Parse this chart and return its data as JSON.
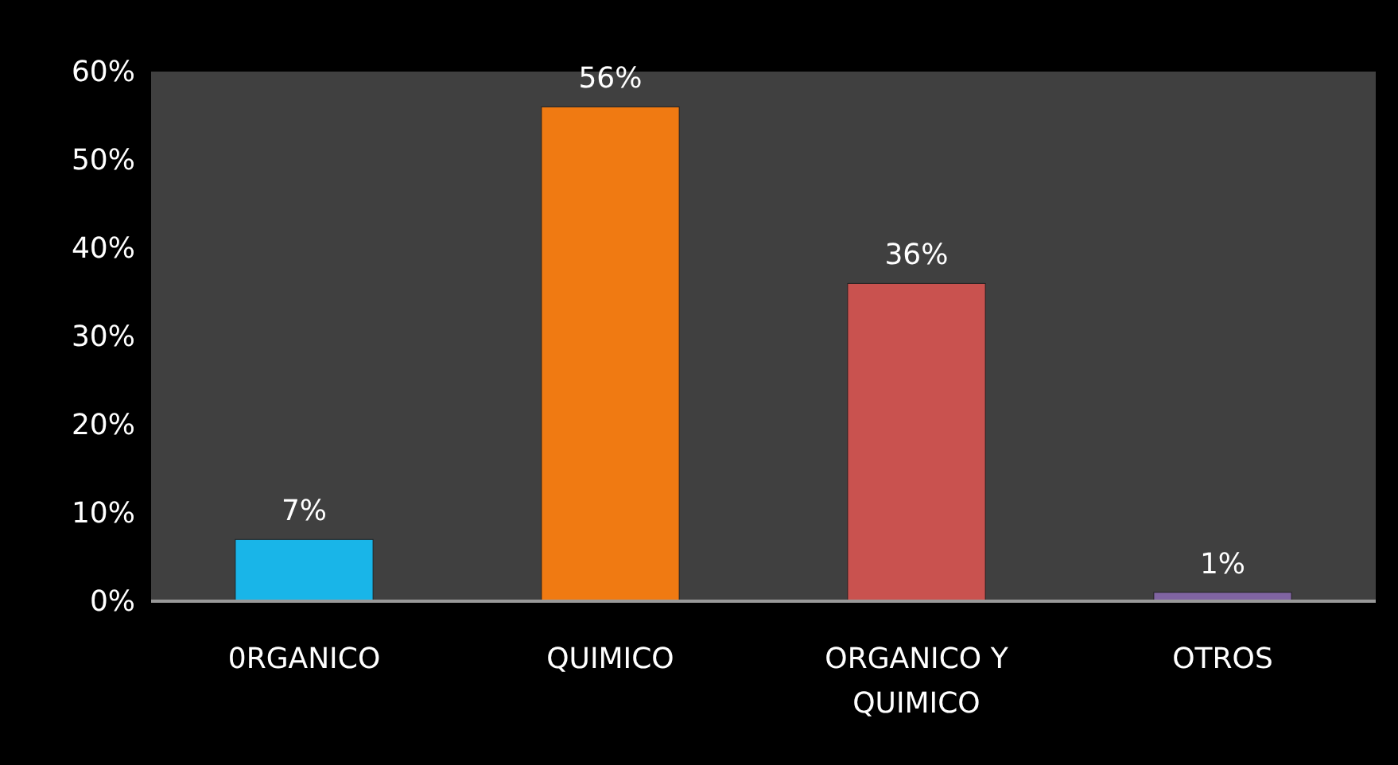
{
  "chart_data": {
    "type": "bar",
    "categories": [
      "0RGANICO",
      "QUIMICO",
      "ORGANICO Y QUIMICO",
      "OTROS"
    ],
    "values": [
      7,
      56,
      36,
      1
    ],
    "colors": [
      "#19b5e8",
      "#f07a12",
      "#c9524f",
      "#8064a2"
    ],
    "ylim": [
      0,
      60
    ],
    "yticks": [
      {
        "value": 0,
        "label": "0%"
      },
      {
        "value": 10,
        "label": "10%"
      },
      {
        "value": 20,
        "label": "20%"
      },
      {
        "value": 30,
        "label": "30%"
      },
      {
        "value": 40,
        "label": "40%"
      },
      {
        "value": 50,
        "label": "50%"
      },
      {
        "value": 60,
        "label": "60%"
      }
    ],
    "value_labels": [
      "7%",
      "56%",
      "36%",
      "1%"
    ],
    "grid": false
  }
}
